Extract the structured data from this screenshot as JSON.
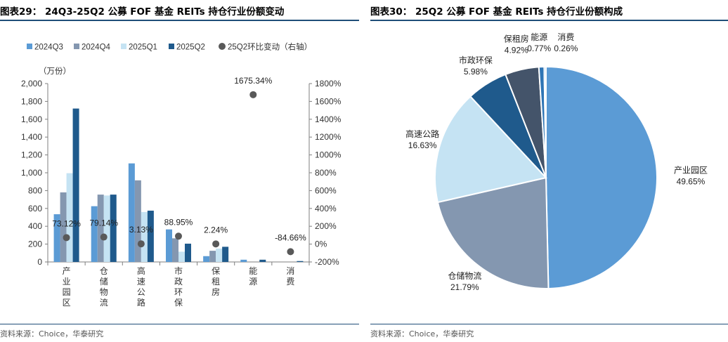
{
  "left": {
    "title": "图表29： 24Q3-25Q2 公募 FOF 基金 REITs 持仓行业份额变动",
    "source": "资料来源：Choice，华泰研究"
  },
  "right": {
    "title": "图表30： 25Q2 公募 FOF 基金 REITs 持仓行业份额构成",
    "source": "资料来源：Choice，华泰研究"
  },
  "colors": {
    "s2024Q3": "#5b9bd5",
    "s2024Q4": "#8497b0",
    "s2025Q1": "#c5e3f3",
    "s2025Q2": "#1f5a8c",
    "change": "#595959",
    "rule": "#1f4e79"
  },
  "chart_data": [
    {
      "type": "bar",
      "title": "24Q3-25Q2 公募 FOF 基金 REITs 持仓行业份额变动",
      "unit_label": "（万份）",
      "categories": [
        "产业园区",
        "仓储物流",
        "高速公路",
        "市政环保",
        "保租房",
        "能源",
        "消费"
      ],
      "series": [
        {
          "name": "2024Q3",
          "values": [
            535,
            625,
            1105,
            365,
            65,
            25,
            0
          ]
        },
        {
          "name": "2024Q4",
          "values": [
            780,
            755,
            915,
            265,
            125,
            0,
            0
          ]
        },
        {
          "name": "2025Q1",
          "values": [
            995,
            745,
            560,
            115,
            150,
            0,
            0
          ]
        },
        {
          "name": "2025Q2",
          "values": [
            1720,
            755,
            575,
            205,
            170,
            25,
            10
          ]
        }
      ],
      "secondary_series": {
        "name": "25Q2环比变动（右轴）",
        "type": "scatter",
        "values": [
          73.12,
          79.14,
          3.13,
          88.95,
          2.24,
          1675.34,
          -84.66
        ],
        "labels": [
          "73.12%",
          "79.14%",
          "3.13%",
          "88.95%",
          "2.24%",
          "1675.34%",
          "-84.66%"
        ]
      },
      "y_left": {
        "min": 0,
        "max": 2000,
        "ticks": [
          "0",
          "200",
          "400",
          "600",
          "800",
          "1,000",
          "1,200",
          "1,400",
          "1,600",
          "1,800",
          "2,000"
        ]
      },
      "y_right": {
        "min": -200,
        "max": 1800,
        "ticks": [
          "-200%",
          "0%",
          "200%",
          "400%",
          "600%",
          "800%",
          "1000%",
          "1200%",
          "1400%",
          "1600%",
          "1800%"
        ]
      },
      "legend_position": "top"
    },
    {
      "type": "pie",
      "title": "25Q2 公募 FOF 基金 REITs 持仓行业份额构成",
      "slices": [
        {
          "label": "产业园区",
          "value": 49.65,
          "text": "49.65%"
        },
        {
          "label": "仓储物流",
          "value": 21.79,
          "text": "21.79%"
        },
        {
          "label": "高速公路",
          "value": 16.63,
          "text": "16.63%"
        },
        {
          "label": "市政环保",
          "value": 5.98,
          "text": "5.98%"
        },
        {
          "label": "保租房",
          "value": 4.92,
          "text": "4.92%"
        },
        {
          "label": "能源",
          "value": 0.77,
          "text": "0.77%"
        },
        {
          "label": "消费",
          "value": 0.26,
          "text": "0.26%"
        }
      ],
      "slice_colors": [
        "#5b9bd5",
        "#8497b0",
        "#c5e3f3",
        "#1f5a8c",
        "#44546a",
        "#2f75b5",
        "#9dc3e6"
      ]
    }
  ]
}
